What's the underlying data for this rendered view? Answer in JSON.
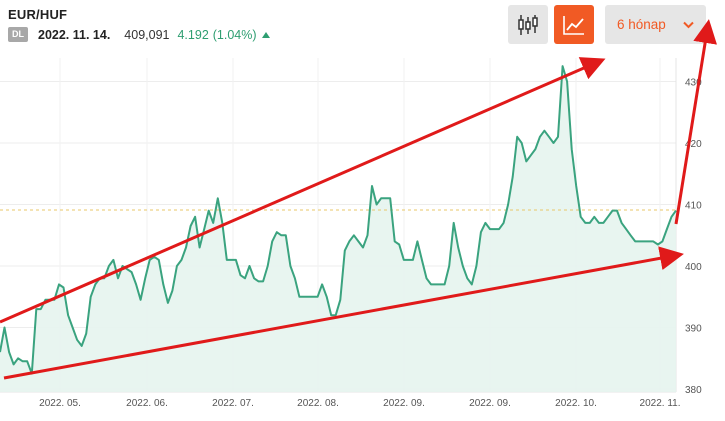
{
  "header": {
    "ticker": "EUR/HUF",
    "badge": "DL",
    "date": "2022. 11. 14.",
    "price": "409,091",
    "change": "4.192",
    "change_pct": "(1.04%)"
  },
  "toolbar": {
    "candle_icon": "candlestick-chart-icon",
    "line_icon": "line-chart-icon",
    "range_label": "6 hónap",
    "range_icon": "chevron-down-icon",
    "accent_color": "#f15a24"
  },
  "chart_data": {
    "type": "area",
    "title": "",
    "xlabel": "",
    "ylabel": "",
    "ylim": [
      380,
      435
    ],
    "y_ticks": [
      380,
      390,
      400,
      410,
      420,
      430
    ],
    "x_ticks": [
      "2022. 05.",
      "2022. 06.",
      "2022. 07.",
      "2022. 08.",
      "2022. 09.",
      "2022. 09.",
      "2022. 10.",
      "2022. 11."
    ],
    "reference_line": 409.1,
    "line_color": "#3aa37f",
    "fill_color": "#e6f4ee",
    "series": [
      {
        "values": [
          386,
          390,
          386,
          384,
          385,
          384.5,
          384.5,
          382.5,
          393,
          393,
          394.5,
          394.5,
          394.5,
          397,
          396.5,
          392,
          390,
          388,
          387,
          389,
          395,
          397,
          398,
          398,
          400,
          401,
          398,
          400,
          399.5,
          399,
          397,
          394.5,
          398,
          401,
          401.5,
          401,
          397,
          394,
          396,
          400,
          401,
          403,
          406.5,
          408,
          403,
          406,
          409,
          407,
          411,
          407,
          401,
          401,
          401,
          398.5,
          398,
          400,
          398,
          397.5,
          397.5,
          400,
          404,
          405.5,
          405,
          405,
          400,
          398,
          395,
          395,
          395,
          395,
          395,
          397,
          395,
          392,
          392,
          394.5,
          402.5,
          404,
          405,
          404,
          403,
          405,
          413,
          410,
          411,
          411,
          411,
          404,
          403.5,
          401,
          401,
          401,
          404,
          401,
          398,
          397,
          397,
          397,
          397,
          400,
          407,
          403,
          400,
          398,
          397,
          400,
          405.5,
          407,
          406,
          406,
          406,
          407,
          410,
          414.5,
          421,
          420,
          417,
          418,
          419,
          421,
          422,
          421,
          420,
          421,
          432.5,
          430,
          419,
          413,
          408,
          407,
          407,
          408,
          407,
          407,
          408,
          409,
          409,
          407,
          406,
          405,
          404,
          404,
          404,
          404,
          404,
          403.5,
          404,
          406,
          408,
          409
        ]
      }
    ]
  }
}
